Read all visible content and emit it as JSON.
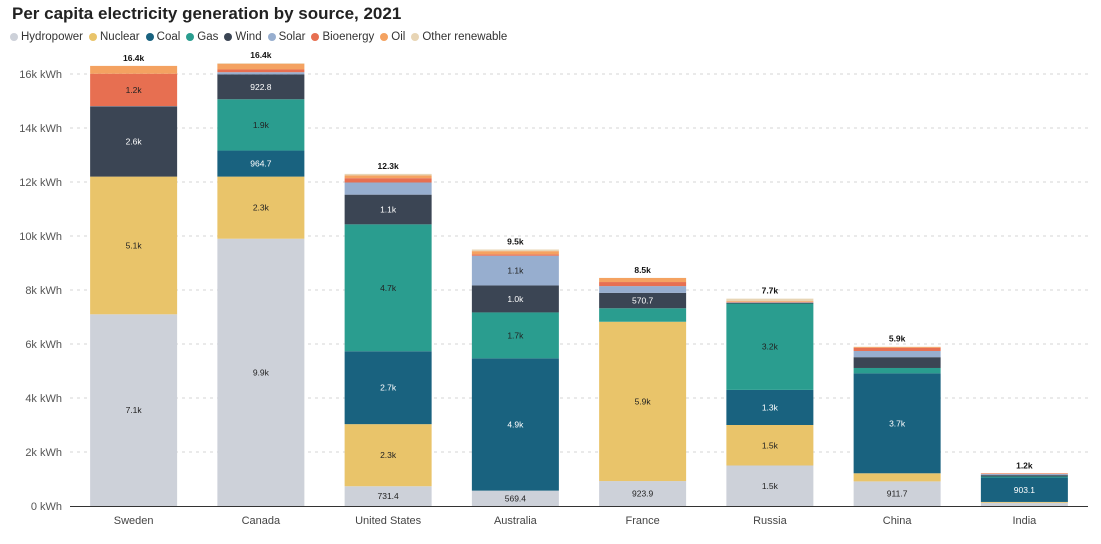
{
  "chart_data": {
    "type": "bar",
    "stacked": true,
    "title": "Per capita electricity generation by source, 2021",
    "ylabel": "",
    "xlabel": "",
    "ylim": [
      0,
      17000
    ],
    "yticks": [
      0,
      2000,
      4000,
      6000,
      8000,
      10000,
      12000,
      14000,
      16000
    ],
    "ytick_labels": [
      "0 kWh",
      "2k kWh",
      "4k kWh",
      "6k kWh",
      "8k kWh",
      "10k kWh",
      "12k kWh",
      "14k kWh",
      "16k kWh"
    ],
    "legend_position": "top-left",
    "grid": true,
    "categories": [
      "Sweden",
      "Canada",
      "United States",
      "Australia",
      "France",
      "Russia",
      "China",
      "India"
    ],
    "series": [
      {
        "name": "Hydropower",
        "color": "#cdd1d9",
        "values": [
          7100,
          9900,
          731.4,
          569.4,
          923.9,
          1500,
          911.7,
          120
        ],
        "labels": [
          "7.1k",
          "9.9k",
          "731.4",
          "569.4",
          "923.9",
          "1.5k",
          "911.7",
          ""
        ]
      },
      {
        "name": "Nuclear",
        "color": "#e9c46a",
        "values": [
          5100,
          2300,
          2300,
          0,
          5900,
          1500,
          300,
          30
        ],
        "labels": [
          "5.1k",
          "2.3k",
          "2.3k",
          "",
          "5.9k",
          "1.5k",
          "",
          ""
        ]
      },
      {
        "name": "Coal",
        "color": "#19627f",
        "values": [
          0,
          964.7,
          2700,
          4900,
          0,
          1300,
          3700,
          903.1
        ],
        "labels": [
          "",
          "964.7",
          "2.7k",
          "4.9k",
          "",
          "1.3k",
          "3.7k",
          "903.1"
        ]
      },
      {
        "name": "Gas",
        "color": "#2a9d8f",
        "values": [
          0,
          1900,
          4700,
          1700,
          500,
          3200,
          200,
          40
        ],
        "labels": [
          "",
          "1.9k",
          "4.7k",
          "1.7k",
          "",
          "3.2k",
          "",
          ""
        ]
      },
      {
        "name": "Wind",
        "color": "#3b4554",
        "values": [
          2600,
          922.8,
          1100,
          1000,
          570.7,
          20,
          400,
          50
        ],
        "labels": [
          "2.6k",
          "922.8",
          "1.1k",
          "1.0k",
          "570.7",
          "",
          "",
          ""
        ]
      },
      {
        "name": "Solar",
        "color": "#97aecf",
        "values": [
          10,
          80,
          450,
          1100,
          250,
          20,
          230,
          40
        ],
        "labels": [
          "",
          "",
          "",
          "1.1k",
          "",
          "",
          "",
          ""
        ]
      },
      {
        "name": "Bioenergy",
        "color": "#e76f51",
        "values": [
          1200,
          100,
          160,
          50,
          150,
          20,
          120,
          20
        ],
        "labels": [
          "1.2k",
          "",
          "",
          "",
          "",
          "",
          "",
          ""
        ]
      },
      {
        "name": "Oil",
        "color": "#f4a261",
        "values": [
          290,
          213,
          100,
          120,
          150,
          30,
          30,
          7
        ],
        "labels": [
          "",
          "",
          "",
          "",
          "",
          "",
          "",
          ""
        ]
      },
      {
        "name": "Other renewable",
        "color": "#e8d5b5",
        "values": [
          0,
          20,
          59,
          61,
          5,
          90,
          9,
          0
        ],
        "labels": [
          "",
          "",
          "",
          "",
          "",
          "",
          "",
          ""
        ]
      }
    ],
    "totals": [
      "16.4k",
      "16.4k",
      "12.3k",
      "9.5k",
      "8.5k",
      "7.7k",
      "5.9k",
      "1.2k"
    ]
  }
}
